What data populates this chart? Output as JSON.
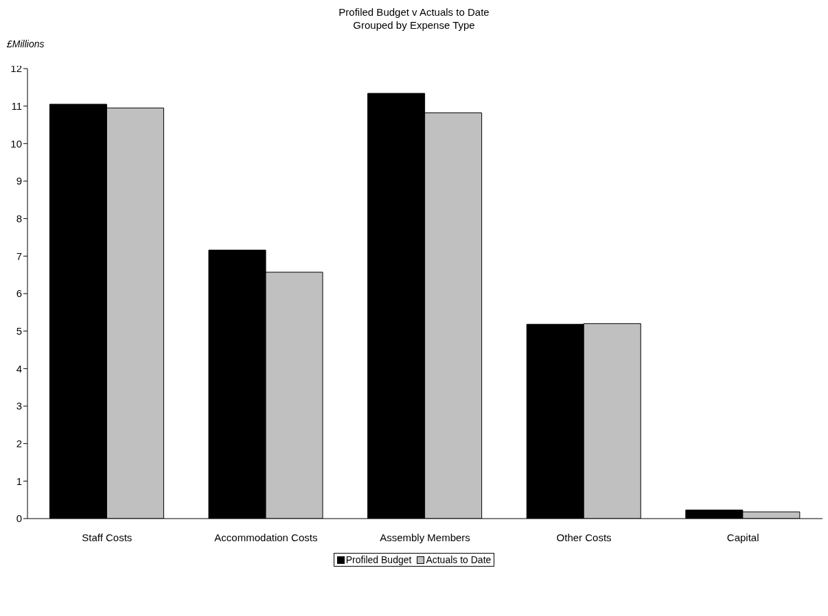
{
  "chart_data": {
    "type": "bar",
    "title": "Profiled Budget v Actuals to Date",
    "subtitle": "Grouped by Expense Type",
    "ylabel": "£Millions",
    "categories": [
      "Staff Costs",
      "Accommodation Costs",
      "Assembly Members",
      "Other Costs",
      "Capital"
    ],
    "series": [
      {
        "name": "Profiled Budget",
        "color": "#000000",
        "values": [
          11.05,
          7.16,
          11.34,
          5.18,
          0.23
        ]
      },
      {
        "name": "Actuals to Date",
        "color": "#c0c0c0",
        "values": [
          10.95,
          6.57,
          10.82,
          5.2,
          0.18
        ]
      }
    ],
    "ylim": [
      0,
      12
    ],
    "yticks": [
      0,
      1,
      2,
      3,
      4,
      5,
      6,
      7,
      8,
      9,
      10,
      11,
      12
    ],
    "legend": "bottom"
  }
}
